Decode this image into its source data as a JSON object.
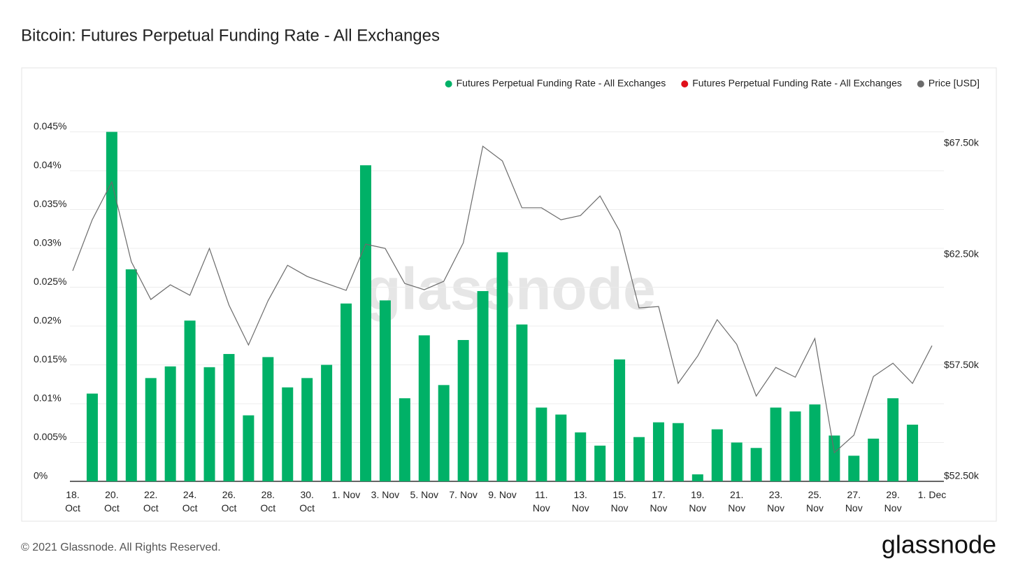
{
  "chart_data": {
    "type": "bar",
    "title": "Bitcoin: Futures Perpetual Funding Rate - All Exchanges",
    "watermark": "glassnode",
    "copyright": "© 2021 Glassnode. All Rights Reserved.",
    "brand": "glassnode",
    "categories": [
      "18. Oct",
      null,
      "20. Oct",
      null,
      "22. Oct",
      null,
      "24. Oct",
      null,
      "26. Oct",
      null,
      "28. Oct",
      null,
      "30. Oct",
      null,
      "1. Nov",
      null,
      "3. Nov",
      null,
      "5. Nov",
      null,
      "7. Nov",
      null,
      "9. Nov",
      null,
      "11. Nov",
      null,
      "13. Nov",
      null,
      "15. Nov",
      null,
      "17. Nov",
      null,
      "19. Nov",
      null,
      "21. Nov",
      null,
      "23. Nov",
      null,
      "25. Nov",
      null,
      "27. Nov",
      null,
      "29. Nov",
      null,
      "1. Dec"
    ],
    "series": [
      {
        "name": "Futures Perpetual Funding Rate - All Exchanges",
        "type": "bar",
        "color": "#00b167",
        "values": [
          null,
          0.0113,
          0.045,
          0.0273,
          0.0133,
          0.0148,
          0.0207,
          0.0147,
          0.0164,
          0.0085,
          0.016,
          0.0121,
          0.0133,
          0.015,
          0.0229,
          0.0407,
          0.0233,
          0.0107,
          0.0188,
          0.0124,
          0.0182,
          0.0245,
          0.0295,
          0.0202,
          0.0095,
          0.0086,
          0.0063,
          0.0046,
          0.0157,
          0.0057,
          0.0076,
          0.0075,
          0.0009,
          0.0067,
          0.005,
          0.0043,
          0.0095,
          0.009,
          0.0099,
          0.0059,
          0.0033,
          0.0055,
          0.0107,
          0.0073,
          null
        ]
      },
      {
        "name": "Futures Perpetual Funding Rate - All Exchanges",
        "type": "bar",
        "color": "#e0101a",
        "values": [
          null,
          null,
          null,
          null,
          null,
          null,
          null,
          null,
          null,
          null,
          null,
          null,
          null,
          null,
          null,
          null,
          null,
          null,
          null,
          null,
          null,
          null,
          null,
          null,
          null,
          null,
          null,
          null,
          null,
          null,
          null,
          null,
          null,
          null,
          null,
          null,
          null,
          null,
          null,
          null,
          null,
          null,
          null,
          null,
          null
        ]
      },
      {
        "name": "Price [USD]",
        "type": "line",
        "axis": "y2",
        "color": "#6b6b6b",
        "values": [
          61760,
          64060,
          65760,
          62170,
          60470,
          61130,
          60660,
          62770,
          60220,
          58420,
          60410,
          62010,
          61510,
          61190,
          60880,
          62960,
          62770,
          61190,
          60910,
          61290,
          63020,
          67370,
          66710,
          64600,
          64600,
          64060,
          64250,
          65130,
          63560,
          60090,
          60150,
          56690,
          57920,
          59560,
          58450,
          56120,
          57410,
          56970,
          58710,
          53570,
          54360,
          57000,
          57600,
          56690,
          58390
        ]
      }
    ],
    "ylim": [
      0,
      0.05
    ],
    "yticks": [
      {
        "value": 0,
        "label": "0%"
      },
      {
        "value": 0.005,
        "label": "0.005%"
      },
      {
        "value": 0.01,
        "label": "0.01%"
      },
      {
        "value": 0.015,
        "label": "0.015%"
      },
      {
        "value": 0.02,
        "label": "0.02%"
      },
      {
        "value": 0.025,
        "label": "0.025%"
      },
      {
        "value": 0.03,
        "label": "0.03%"
      },
      {
        "value": 0.035,
        "label": "0.035%"
      },
      {
        "value": 0.04,
        "label": "0.04%"
      },
      {
        "value": 0.045,
        "label": "0.045%"
      }
    ],
    "y2lim": [
      52280,
      69765
    ],
    "y2ticks": [
      {
        "value": 52500,
        "label": "$52.50k"
      },
      {
        "value": 57500,
        "label": "$57.50k"
      },
      {
        "value": 62500,
        "label": "$62.50k"
      },
      {
        "value": 67500,
        "label": "$67.50k"
      }
    ],
    "grid": true
  }
}
